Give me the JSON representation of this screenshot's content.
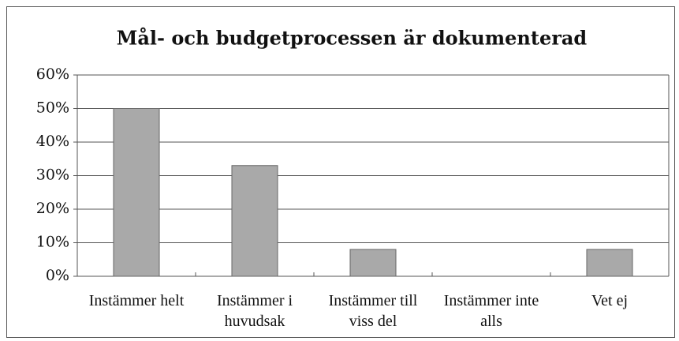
{
  "chart_data": {
    "type": "bar",
    "title": "Mål- och budgetprocessen är dokumenterad",
    "categories": [
      "Instämmer helt",
      "Instämmer i huvudsak",
      "Instämmer till viss del",
      "Instämmer inte alls",
      "Vet ej"
    ],
    "values": [
      50,
      33,
      8,
      0,
      8
    ],
    "color": "#a9a9a9",
    "ylim": [
      0,
      60
    ],
    "yticks": [
      {
        "value": 0,
        "label": "0%"
      },
      {
        "value": 10,
        "label": "10%"
      },
      {
        "value": 20,
        "label": "20%"
      },
      {
        "value": 30,
        "label": "30%"
      },
      {
        "value": 40,
        "label": "40%"
      },
      {
        "value": 50,
        "label": "50%"
      },
      {
        "value": 60,
        "label": "60%"
      }
    ],
    "grid": true
  }
}
